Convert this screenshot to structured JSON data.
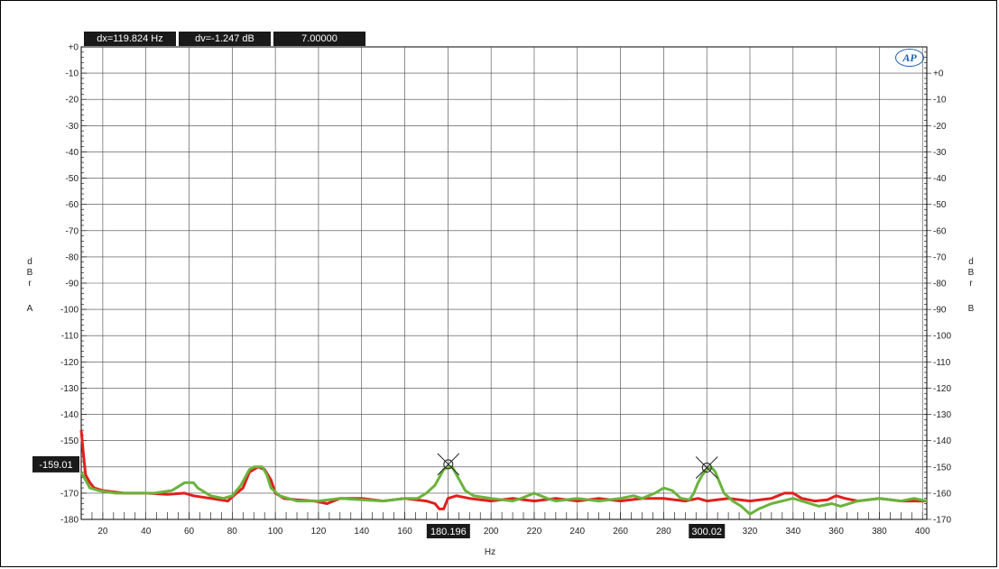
{
  "readouts": {
    "dx": "dx=119.824  Hz",
    "dv": "dv=-1.247  dB",
    "value": "7.00000"
  },
  "logo": "AP",
  "axis_titles": {
    "left_letters": [
      "d",
      "B",
      "r"
    ],
    "left_channel": "A",
    "right_letters": [
      "d",
      "B",
      "r"
    ],
    "right_channel": "B",
    "x": "Hz"
  },
  "cursors": {
    "y_readout": "-159.01",
    "x1_readout": "180.196",
    "x2_readout": "300.02"
  },
  "chart_data": {
    "type": "line",
    "xlabel": "Hz",
    "ylabel_left": "dBr A",
    "ylabel_right": "dBr B",
    "xlim": [
      10,
      402
    ],
    "ylim_left": [
      -180,
      0
    ],
    "ylim_right": [
      -170,
      10
    ],
    "x_ticks": [
      20,
      40,
      60,
      80,
      100,
      120,
      140,
      160,
      180,
      200,
      220,
      240,
      260,
      280,
      300,
      320,
      340,
      360,
      380,
      400
    ],
    "x_tick_labels": [
      "20",
      "40",
      "60",
      "80",
      "100",
      "120",
      "140",
      "160",
      "180",
      "200",
      "220",
      "240",
      "260",
      "280",
      "300",
      "320",
      "340",
      "360",
      "380",
      "400"
    ],
    "y_left_ticks": [
      0,
      -10,
      -20,
      -30,
      -40,
      -50,
      -60,
      -70,
      -80,
      -90,
      -100,
      -110,
      -120,
      -130,
      -140,
      -150,
      -160,
      -170,
      -180
    ],
    "y_left_tick_labels": [
      "+0",
      "-10",
      "-20",
      "-30",
      "-40",
      "-50",
      "-60",
      "-70",
      "-80",
      "-90",
      "-100",
      "-110",
      "-120",
      "-130",
      "-140",
      "-150",
      "",
      "-170",
      "-180"
    ],
    "y_right_ticks": [
      0,
      -10,
      -20,
      -30,
      -40,
      -50,
      -60,
      -70,
      -80,
      -90,
      -100,
      -110,
      -120,
      -130,
      -140,
      -150,
      -160,
      -170
    ],
    "y_right_tick_labels": [
      "+0",
      "-10",
      "-20",
      "-30",
      "-40",
      "-50",
      "-60",
      "-70",
      "-80",
      "-90",
      "-100",
      "-110",
      "-120",
      "-130",
      "-140",
      "-150",
      "-160",
      "-170"
    ],
    "grid": true,
    "series": [
      {
        "color": "#e0201e",
        "axis": "left",
        "points": [
          [
            10,
            -146
          ],
          [
            11,
            -155
          ],
          [
            12,
            -163
          ],
          [
            14,
            -166
          ],
          [
            16,
            -168
          ],
          [
            20,
            -169
          ],
          [
            30,
            -170
          ],
          [
            40,
            -170
          ],
          [
            50,
            -170.5
          ],
          [
            58,
            -170
          ],
          [
            62,
            -171
          ],
          [
            70,
            -172
          ],
          [
            78,
            -173
          ],
          [
            82,
            -170
          ],
          [
            85,
            -168
          ],
          [
            88,
            -162
          ],
          [
            92,
            -160
          ],
          [
            95,
            -161
          ],
          [
            98,
            -165
          ],
          [
            100,
            -170
          ],
          [
            104,
            -172
          ],
          [
            110,
            -172.5
          ],
          [
            118,
            -173
          ],
          [
            124,
            -174
          ],
          [
            130,
            -172
          ],
          [
            140,
            -172
          ],
          [
            150,
            -173
          ],
          [
            160,
            -172
          ],
          [
            170,
            -173
          ],
          [
            174,
            -174
          ],
          [
            176,
            -176
          ],
          [
            178,
            -176
          ],
          [
            180,
            -172
          ],
          [
            184,
            -171
          ],
          [
            190,
            -172
          ],
          [
            200,
            -173
          ],
          [
            210,
            -172
          ],
          [
            220,
            -173
          ],
          [
            230,
            -172
          ],
          [
            240,
            -173
          ],
          [
            250,
            -172
          ],
          [
            260,
            -173
          ],
          [
            270,
            -172
          ],
          [
            280,
            -172
          ],
          [
            290,
            -173
          ],
          [
            296,
            -172
          ],
          [
            300,
            -173
          ],
          [
            310,
            -172
          ],
          [
            320,
            -173
          ],
          [
            330,
            -172
          ],
          [
            336,
            -170
          ],
          [
            340,
            -170
          ],
          [
            344,
            -172
          ],
          [
            350,
            -173
          ],
          [
            356,
            -172.5
          ],
          [
            360,
            -171
          ],
          [
            364,
            -172
          ],
          [
            370,
            -173
          ],
          [
            380,
            -172
          ],
          [
            390,
            -173
          ],
          [
            402,
            -173
          ]
        ]
      },
      {
        "color": "#6ab33c",
        "axis": "right",
        "points": [
          [
            10,
            -152
          ],
          [
            12,
            -155
          ],
          [
            14,
            -158
          ],
          [
            18,
            -159
          ],
          [
            26,
            -160
          ],
          [
            34,
            -160
          ],
          [
            44,
            -160
          ],
          [
            52,
            -159
          ],
          [
            56,
            -157
          ],
          [
            58,
            -156
          ],
          [
            62,
            -156
          ],
          [
            64,
            -158
          ],
          [
            70,
            -161
          ],
          [
            76,
            -162
          ],
          [
            80,
            -161
          ],
          [
            84,
            -157
          ],
          [
            88,
            -151
          ],
          [
            90,
            -150
          ],
          [
            94,
            -150
          ],
          [
            96,
            -153
          ],
          [
            98,
            -158
          ],
          [
            102,
            -161
          ],
          [
            106,
            -162
          ],
          [
            110,
            -163
          ],
          [
            120,
            -163
          ],
          [
            130,
            -162
          ],
          [
            140,
            -162.5
          ],
          [
            150,
            -163
          ],
          [
            160,
            -162
          ],
          [
            166,
            -162
          ],
          [
            170,
            -160
          ],
          [
            174,
            -157
          ],
          [
            176,
            -154
          ],
          [
            178,
            -151
          ],
          [
            180,
            -150
          ],
          [
            182,
            -150
          ],
          [
            184,
            -153
          ],
          [
            186,
            -156
          ],
          [
            188,
            -159
          ],
          [
            192,
            -161
          ],
          [
            200,
            -162
          ],
          [
            210,
            -163
          ],
          [
            214,
            -162
          ],
          [
            220,
            -160
          ],
          [
            226,
            -162
          ],
          [
            230,
            -163
          ],
          [
            240,
            -162
          ],
          [
            250,
            -163
          ],
          [
            260,
            -162
          ],
          [
            266,
            -161
          ],
          [
            270,
            -162
          ],
          [
            276,
            -160
          ],
          [
            280,
            -158
          ],
          [
            284,
            -159
          ],
          [
            288,
            -162
          ],
          [
            292,
            -162.5
          ],
          [
            294,
            -160
          ],
          [
            296,
            -156
          ],
          [
            298,
            -153
          ],
          [
            300,
            -151
          ],
          [
            302,
            -150
          ],
          [
            304,
            -152
          ],
          [
            306,
            -156
          ],
          [
            308,
            -160
          ],
          [
            312,
            -163
          ],
          [
            316,
            -165
          ],
          [
            320,
            -168
          ],
          [
            324,
            -166
          ],
          [
            330,
            -164
          ],
          [
            340,
            -162
          ],
          [
            348,
            -164
          ],
          [
            352,
            -165
          ],
          [
            358,
            -164
          ],
          [
            362,
            -165
          ],
          [
            370,
            -163
          ],
          [
            380,
            -162
          ],
          [
            390,
            -163
          ],
          [
            396,
            -162
          ],
          [
            402,
            -163
          ]
        ]
      }
    ],
    "markers": [
      {
        "x": 180.196,
        "y": -159.01,
        "axis": "left"
      },
      {
        "x": 300.02,
        "y": -160.26,
        "axis": "left"
      }
    ]
  }
}
